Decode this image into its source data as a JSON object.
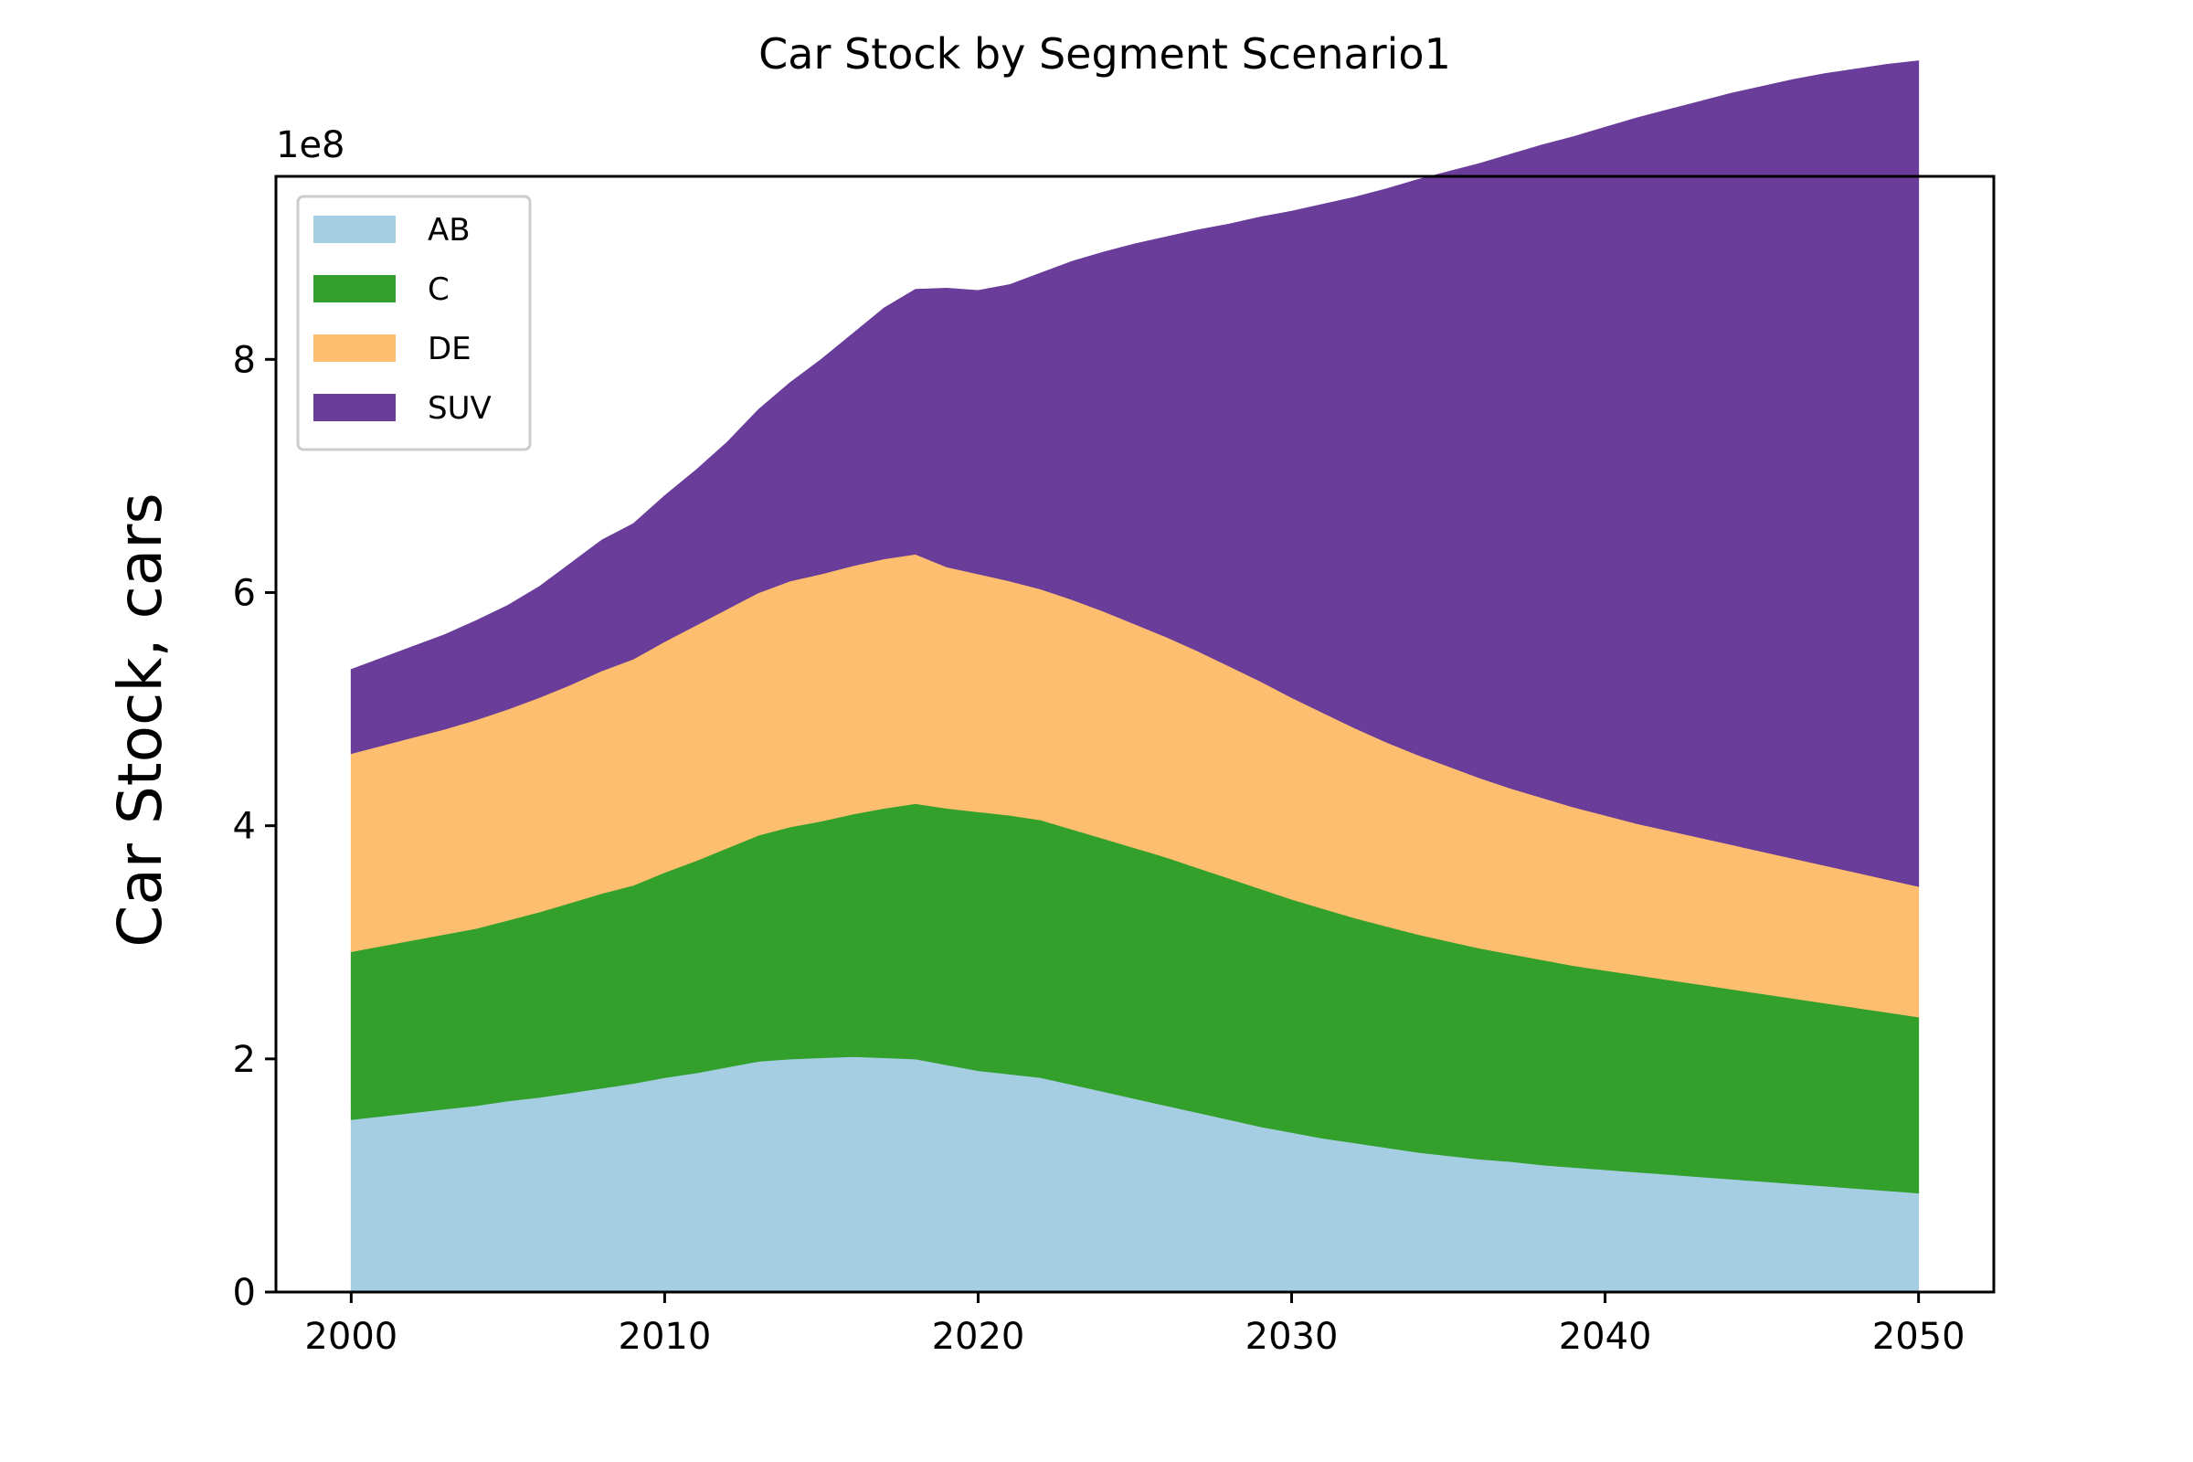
{
  "chart_data": {
    "type": "area",
    "stacked": true,
    "title": "Car Stock by Segment Scenario1",
    "xlabel": "",
    "ylabel": "Car Stock, cars",
    "y_offset_label": "1e8",
    "xlim": [
      1997.6,
      2052.4
    ],
    "ylim": [
      0,
      9.57
    ],
    "x_ticks": [
      2000,
      2010,
      2020,
      2030,
      2040,
      2050
    ],
    "x_tick_labels": [
      "2000",
      "2010",
      "2020",
      "2030",
      "2040",
      "2050"
    ],
    "y_ticks": [
      0,
      2,
      4,
      6,
      8
    ],
    "y_tick_labels": [
      "0",
      "2",
      "4",
      "6",
      "8"
    ],
    "grid": false,
    "legend_position": "upper-left",
    "x": [
      2000,
      2001,
      2002,
      2003,
      2004,
      2005,
      2006,
      2007,
      2008,
      2009,
      2010,
      2011,
      2012,
      2013,
      2014,
      2015,
      2016,
      2017,
      2018,
      2019,
      2020,
      2021,
      2022,
      2023,
      2024,
      2025,
      2026,
      2027,
      2028,
      2029,
      2030,
      2031,
      2032,
      2033,
      2034,
      2035,
      2036,
      2037,
      2038,
      2039,
      2040,
      2041,
      2042,
      2043,
      2044,
      2045,
      2046,
      2047,
      2048,
      2049,
      2050
    ],
    "series": [
      {
        "name": "AB",
        "color": "#a6cee3",
        "values": [
          1.48,
          1.51,
          1.54,
          1.57,
          1.6,
          1.64,
          1.67,
          1.71,
          1.75,
          1.79,
          1.84,
          1.88,
          1.93,
          1.98,
          2.0,
          2.01,
          2.02,
          2.01,
          2.0,
          1.95,
          1.9,
          1.87,
          1.84,
          1.78,
          1.72,
          1.66,
          1.6,
          1.54,
          1.48,
          1.42,
          1.37,
          1.32,
          1.28,
          1.24,
          1.2,
          1.17,
          1.14,
          1.12,
          1.09,
          1.07,
          1.05,
          1.03,
          1.01,
          0.99,
          0.97,
          0.95,
          0.93,
          0.91,
          0.89,
          0.87,
          0.85
        ]
      },
      {
        "name": "C",
        "color": "#33a02c",
        "values": [
          1.44,
          1.46,
          1.48,
          1.5,
          1.52,
          1.55,
          1.59,
          1.63,
          1.67,
          1.7,
          1.76,
          1.82,
          1.88,
          1.94,
          1.99,
          2.03,
          2.08,
          2.14,
          2.19,
          2.2,
          2.22,
          2.22,
          2.21,
          2.19,
          2.17,
          2.15,
          2.13,
          2.1,
          2.07,
          2.04,
          2.0,
          1.97,
          1.93,
          1.9,
          1.87,
          1.84,
          1.81,
          1.78,
          1.76,
          1.73,
          1.71,
          1.69,
          1.67,
          1.65,
          1.63,
          1.61,
          1.59,
          1.57,
          1.55,
          1.53,
          1.51
        ]
      },
      {
        "name": "DE",
        "color": "#fdbf6f",
        "values": [
          1.7,
          1.72,
          1.74,
          1.76,
          1.79,
          1.81,
          1.84,
          1.87,
          1.91,
          1.94,
          1.98,
          2.02,
          2.05,
          2.08,
          2.11,
          2.12,
          2.13,
          2.14,
          2.14,
          2.07,
          2.04,
          2.01,
          1.98,
          1.97,
          1.95,
          1.92,
          1.89,
          1.86,
          1.82,
          1.78,
          1.73,
          1.68,
          1.63,
          1.58,
          1.54,
          1.5,
          1.46,
          1.42,
          1.39,
          1.36,
          1.33,
          1.3,
          1.28,
          1.26,
          1.24,
          1.22,
          1.2,
          1.18,
          1.16,
          1.14,
          1.12
        ]
      },
      {
        "name": "SUV",
        "color": "#6a3d9a",
        "values": [
          0.72,
          0.75,
          0.78,
          0.81,
          0.85,
          0.89,
          0.95,
          1.04,
          1.12,
          1.16,
          1.25,
          1.33,
          1.43,
          1.57,
          1.7,
          1.84,
          1.99,
          2.15,
          2.27,
          2.39,
          2.43,
          2.54,
          2.71,
          2.9,
          3.08,
          3.26,
          3.43,
          3.61,
          3.79,
          3.98,
          4.17,
          4.36,
          4.55,
          4.74,
          4.93,
          5.1,
          5.27,
          5.44,
          5.6,
          5.75,
          5.9,
          6.05,
          6.18,
          6.31,
          6.44,
          6.56,
          6.68,
          6.79,
          6.89,
          6.99,
          7.08
        ]
      }
    ]
  }
}
